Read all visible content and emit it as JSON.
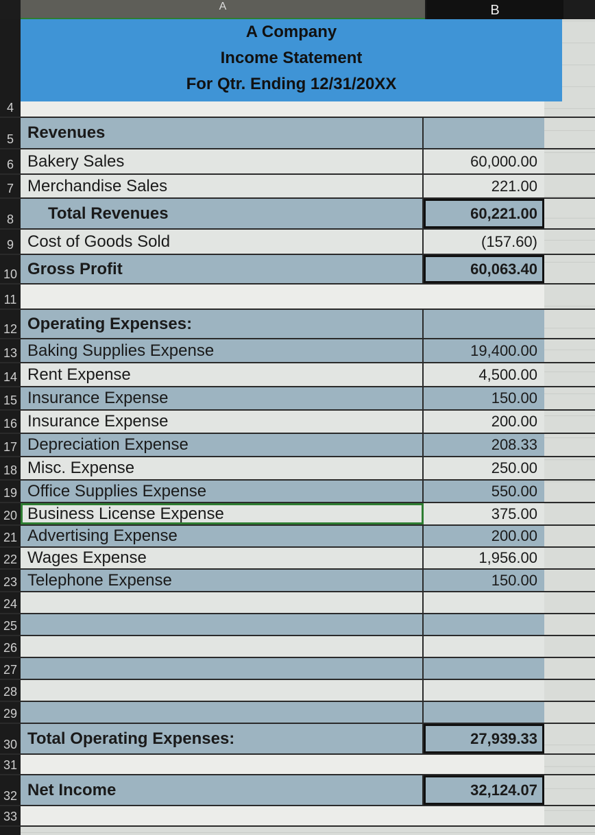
{
  "columns": {
    "a": "A",
    "b": "B"
  },
  "header": {
    "company": "A Company",
    "statement": "Income Statement",
    "period": "For Qtr. Ending 12/31/20XX"
  },
  "rows": [
    {
      "num": "4",
      "label": "",
      "value": ""
    },
    {
      "num": "5",
      "label": "Revenues",
      "value": ""
    },
    {
      "num": "6",
      "label": "Bakery Sales",
      "value": "60,000.00"
    },
    {
      "num": "7",
      "label": "Merchandise Sales",
      "value": "221.00"
    },
    {
      "num": "8",
      "label": "Total Revenues",
      "value": "60,221.00"
    },
    {
      "num": "9",
      "label": "Cost of Goods Sold",
      "value": "(157.60)"
    },
    {
      "num": "10",
      "label": "Gross Profit",
      "value": "60,063.40"
    },
    {
      "num": "11",
      "label": "",
      "value": ""
    },
    {
      "num": "12",
      "label": "Operating Expenses:",
      "value": ""
    },
    {
      "num": "13",
      "label": "Baking Supplies Expense",
      "value": "19,400.00"
    },
    {
      "num": "14",
      "label": "Rent Expense",
      "value": "4,500.00"
    },
    {
      "num": "15",
      "label": "Insurance Expense",
      "value": "150.00"
    },
    {
      "num": "16",
      "label": "Insurance Expense",
      "value": "200.00"
    },
    {
      "num": "17",
      "label": "Depreciation Expense",
      "value": "208.33"
    },
    {
      "num": "18",
      "label": "Misc. Expense",
      "value": "250.00"
    },
    {
      "num": "19",
      "label": "Office Supplies Expense",
      "value": "550.00"
    },
    {
      "num": "20",
      "label": "Business License Expense",
      "value": "375.00"
    },
    {
      "num": "21",
      "label": "Advertising Expense",
      "value": "200.00"
    },
    {
      "num": "22",
      "label": "Wages Expense",
      "value": "1,956.00"
    },
    {
      "num": "23",
      "label": "Telephone Expense",
      "value": "150.00"
    },
    {
      "num": "24",
      "label": "",
      "value": ""
    },
    {
      "num": "25",
      "label": "",
      "value": ""
    },
    {
      "num": "26",
      "label": "",
      "value": ""
    },
    {
      "num": "27",
      "label": "",
      "value": ""
    },
    {
      "num": "28",
      "label": "",
      "value": ""
    },
    {
      "num": "29",
      "label": "",
      "value": ""
    },
    {
      "num": "30",
      "label": "Total Operating Expenses:",
      "value": "27,939.33"
    },
    {
      "num": "31",
      "label": "",
      "value": ""
    },
    {
      "num": "32",
      "label": "Net Income",
      "value": "32,124.07"
    },
    {
      "num": "33",
      "label": "",
      "value": ""
    }
  ],
  "selected_cell": "A20"
}
